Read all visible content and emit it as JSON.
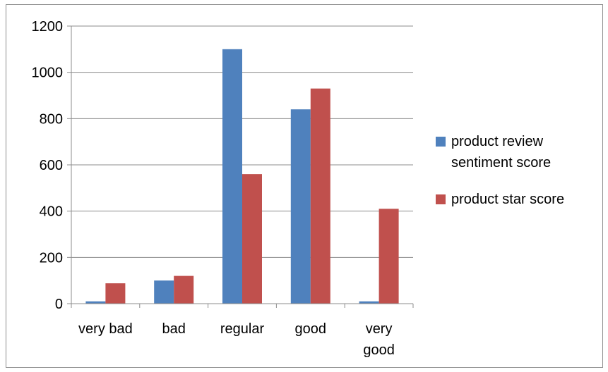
{
  "chart_data": {
    "type": "bar",
    "categories": [
      "very bad",
      "bad",
      "regular",
      "good",
      "very good"
    ],
    "category_labels": [
      [
        "very bad"
      ],
      [
        "bad"
      ],
      [
        "regular"
      ],
      [
        "good"
      ],
      [
        "very",
        "good"
      ]
    ],
    "series": [
      {
        "name": "product review sentiment score",
        "name_lines": [
          "product review",
          "sentiment score"
        ],
        "color": "#4f81bd",
        "values": [
          10,
          100,
          1100,
          840,
          10
        ]
      },
      {
        "name": "product star score",
        "name_lines": [
          "product star score"
        ],
        "color": "#c0504d",
        "values": [
          88,
          120,
          560,
          930,
          410
        ]
      }
    ],
    "ylim": [
      0,
      1200
    ],
    "yticks": [
      0,
      200,
      400,
      600,
      800,
      1000,
      1200
    ],
    "title": "",
    "xlabel": "",
    "ylabel": "",
    "grid": true,
    "legend": "right"
  }
}
